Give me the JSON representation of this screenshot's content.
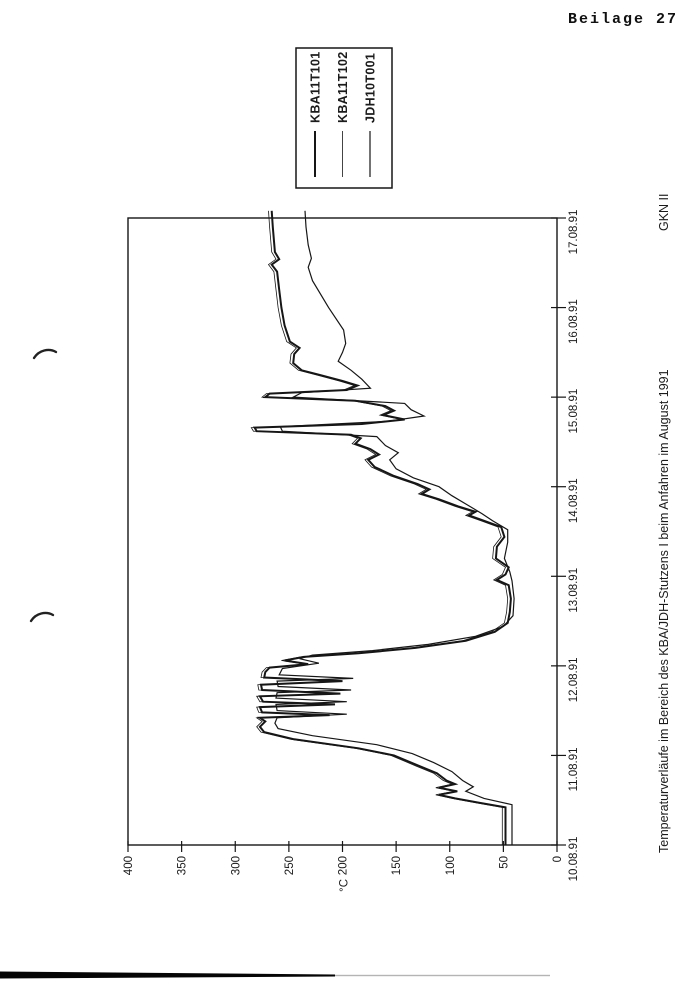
{
  "header": {
    "label": "Beilage 27"
  },
  "chart_data": {
    "type": "line",
    "orientation": "page rotated 90deg (read by turning page clockwise)",
    "title": "Temperaturverläufe im Bereich des KBA/JDH-Stutzens I beim Anfahren im August 1991",
    "footer_right": "GKN II",
    "ylabel": "°C",
    "grid": false,
    "ink_color": "#161616",
    "x_axis": {
      "min": 10,
      "max": 17,
      "ticks": [
        {
          "v": 10,
          "label": "10.08.91"
        },
        {
          "v": 11,
          "label": "11.08.91"
        },
        {
          "v": 12,
          "label": "12.08.91"
        },
        {
          "v": 13,
          "label": "13.08.91"
        },
        {
          "v": 14,
          "label": "14.08.91"
        },
        {
          "v": 15,
          "label": "15.08.91"
        },
        {
          "v": 16,
          "label": "16.08.91"
        },
        {
          "v": 17,
          "label": "17.08.91"
        }
      ]
    },
    "y_axis": {
      "min": 0,
      "max": 400,
      "ticks": [
        0,
        50,
        100,
        150,
        200,
        250,
        300,
        350,
        400
      ]
    },
    "legend": {
      "position": "outside-right",
      "box": true
    },
    "series": [
      {
        "name": "KBA11T101",
        "stroke_width": 2,
        "points": [
          [
            10.0,
            48
          ],
          [
            10.42,
            48
          ],
          [
            10.47,
            72
          ],
          [
            10.52,
            95
          ],
          [
            10.56,
            110
          ],
          [
            10.6,
            93
          ],
          [
            10.64,
            110
          ],
          [
            10.68,
            95
          ],
          [
            10.72,
            103
          ],
          [
            10.8,
            112
          ],
          [
            10.88,
            128
          ],
          [
            11.0,
            152
          ],
          [
            11.08,
            185
          ],
          [
            11.18,
            245
          ],
          [
            11.26,
            273
          ],
          [
            11.32,
            277
          ],
          [
            11.38,
            272
          ],
          [
            11.42,
            277
          ],
          [
            11.45,
            212
          ],
          [
            11.48,
            275
          ],
          [
            11.54,
            277
          ],
          [
            11.57,
            207
          ],
          [
            11.6,
            274
          ],
          [
            11.66,
            277
          ],
          [
            11.69,
            202
          ],
          [
            11.73,
            275
          ],
          [
            11.79,
            276
          ],
          [
            11.83,
            200
          ],
          [
            11.87,
            273
          ],
          [
            11.93,
            272
          ],
          [
            11.98,
            268
          ],
          [
            12.02,
            232
          ],
          [
            12.06,
            254
          ],
          [
            12.1,
            236
          ],
          [
            12.14,
            185
          ],
          [
            12.2,
            132
          ],
          [
            12.28,
            85
          ],
          [
            12.38,
            58
          ],
          [
            12.48,
            46
          ],
          [
            12.6,
            44
          ],
          [
            12.75,
            43
          ],
          [
            12.9,
            45
          ],
          [
            12.96,
            56
          ],
          [
            13.02,
            48
          ],
          [
            13.1,
            45
          ],
          [
            13.2,
            57
          ],
          [
            13.33,
            56
          ],
          [
            13.44,
            49
          ],
          [
            13.55,
            52
          ],
          [
            13.62,
            68
          ],
          [
            13.68,
            82
          ],
          [
            13.72,
            76
          ],
          [
            13.78,
            92
          ],
          [
            13.86,
            110
          ],
          [
            13.92,
            126
          ],
          [
            13.97,
            119
          ],
          [
            14.03,
            130
          ],
          [
            14.12,
            152
          ],
          [
            14.22,
            170
          ],
          [
            14.3,
            176
          ],
          [
            14.36,
            166
          ],
          [
            14.42,
            174
          ],
          [
            14.48,
            188
          ],
          [
            14.54,
            183
          ],
          [
            14.58,
            192
          ],
          [
            14.62,
            280
          ],
          [
            14.66,
            282
          ],
          [
            14.7,
            182
          ],
          [
            14.75,
            142
          ],
          [
            14.8,
            162
          ],
          [
            14.85,
            152
          ],
          [
            14.9,
            160
          ],
          [
            14.96,
            188
          ],
          [
            15.0,
            272
          ],
          [
            15.04,
            268
          ],
          [
            15.08,
            196
          ],
          [
            15.13,
            186
          ],
          [
            15.18,
            200
          ],
          [
            15.25,
            222
          ],
          [
            15.3,
            238
          ],
          [
            15.38,
            246
          ],
          [
            15.48,
            245
          ],
          [
            15.55,
            240
          ],
          [
            15.62,
            249
          ],
          [
            15.8,
            254
          ],
          [
            16.0,
            257
          ],
          [
            16.2,
            259
          ],
          [
            16.4,
            261
          ],
          [
            16.48,
            266
          ],
          [
            16.54,
            259
          ],
          [
            16.62,
            263
          ],
          [
            16.9,
            265
          ],
          [
            17.08,
            266
          ]
        ]
      },
      {
        "name": "KBA11T102",
        "stroke_width": 0.8,
        "points": [
          [
            10.0,
            51
          ],
          [
            10.42,
            51
          ],
          [
            10.47,
            75
          ],
          [
            10.52,
            98
          ],
          [
            10.56,
            113
          ],
          [
            10.6,
            96
          ],
          [
            10.64,
            113
          ],
          [
            10.68,
            98
          ],
          [
            10.72,
            106
          ],
          [
            10.8,
            115
          ],
          [
            10.88,
            131
          ],
          [
            11.0,
            155
          ],
          [
            11.08,
            188
          ],
          [
            11.18,
            248
          ],
          [
            11.26,
            276
          ],
          [
            11.32,
            280
          ],
          [
            11.38,
            275
          ],
          [
            11.42,
            280
          ],
          [
            11.45,
            215
          ],
          [
            11.48,
            278
          ],
          [
            11.54,
            280
          ],
          [
            11.57,
            210
          ],
          [
            11.6,
            277
          ],
          [
            11.66,
            280
          ],
          [
            11.69,
            205
          ],
          [
            11.73,
            278
          ],
          [
            11.79,
            279
          ],
          [
            11.83,
            203
          ],
          [
            11.87,
            276
          ],
          [
            11.93,
            275
          ],
          [
            11.98,
            271
          ],
          [
            12.02,
            235
          ],
          [
            12.06,
            257
          ],
          [
            12.1,
            239
          ],
          [
            12.14,
            188
          ],
          [
            12.2,
            135
          ],
          [
            12.28,
            88
          ],
          [
            12.38,
            61
          ],
          [
            12.48,
            49
          ],
          [
            12.6,
            47
          ],
          [
            12.75,
            46
          ],
          [
            12.9,
            48
          ],
          [
            12.96,
            59
          ],
          [
            13.02,
            51
          ],
          [
            13.1,
            48
          ],
          [
            13.2,
            60
          ],
          [
            13.33,
            59
          ],
          [
            13.44,
            52
          ],
          [
            13.55,
            55
          ],
          [
            13.62,
            71
          ],
          [
            13.68,
            85
          ],
          [
            13.72,
            79
          ],
          [
            13.78,
            95
          ],
          [
            13.86,
            113
          ],
          [
            13.92,
            129
          ],
          [
            13.97,
            122
          ],
          [
            14.03,
            133
          ],
          [
            14.12,
            155
          ],
          [
            14.22,
            173
          ],
          [
            14.3,
            179
          ],
          [
            14.36,
            169
          ],
          [
            14.42,
            177
          ],
          [
            14.48,
            191
          ],
          [
            14.54,
            186
          ],
          [
            14.58,
            195
          ],
          [
            14.62,
            283
          ],
          [
            14.66,
            285
          ],
          [
            14.7,
            185
          ],
          [
            14.75,
            145
          ],
          [
            14.8,
            165
          ],
          [
            14.85,
            155
          ],
          [
            14.9,
            163
          ],
          [
            14.96,
            191
          ],
          [
            15.0,
            275
          ],
          [
            15.04,
            271
          ],
          [
            15.08,
            199
          ],
          [
            15.13,
            189
          ],
          [
            15.18,
            203
          ],
          [
            15.25,
            225
          ],
          [
            15.3,
            241
          ],
          [
            15.38,
            249
          ],
          [
            15.48,
            248
          ],
          [
            15.55,
            243
          ],
          [
            15.62,
            252
          ],
          [
            15.8,
            257
          ],
          [
            16.0,
            260
          ],
          [
            16.2,
            262
          ],
          [
            16.4,
            264
          ],
          [
            16.48,
            269
          ],
          [
            16.54,
            262
          ],
          [
            16.62,
            266
          ],
          [
            16.9,
            268
          ],
          [
            17.08,
            269
          ]
        ]
      },
      {
        "name": "JDH10T001",
        "stroke_width": 1.2,
        "points": [
          [
            10.0,
            42
          ],
          [
            10.45,
            42
          ],
          [
            10.52,
            68
          ],
          [
            10.6,
            85
          ],
          [
            10.65,
            78
          ],
          [
            10.72,
            88
          ],
          [
            10.82,
            98
          ],
          [
            10.92,
            115
          ],
          [
            11.02,
            135
          ],
          [
            11.12,
            168
          ],
          [
            11.22,
            228
          ],
          [
            11.3,
            260
          ],
          [
            11.36,
            263
          ],
          [
            11.42,
            261
          ],
          [
            11.46,
            196
          ],
          [
            11.5,
            261
          ],
          [
            11.57,
            262
          ],
          [
            11.6,
            196
          ],
          [
            11.64,
            262
          ],
          [
            11.7,
            261
          ],
          [
            11.73,
            192
          ],
          [
            11.77,
            260
          ],
          [
            11.83,
            261
          ],
          [
            11.86,
            190
          ],
          [
            11.9,
            259
          ],
          [
            11.97,
            256
          ],
          [
            12.03,
            222
          ],
          [
            12.08,
            240
          ],
          [
            12.12,
            228
          ],
          [
            12.17,
            172
          ],
          [
            12.24,
            120
          ],
          [
            12.33,
            76
          ],
          [
            12.44,
            50
          ],
          [
            12.56,
            41
          ],
          [
            12.75,
            40
          ],
          [
            12.95,
            42
          ],
          [
            13.05,
            44
          ],
          [
            13.2,
            49
          ],
          [
            13.38,
            46
          ],
          [
            13.52,
            46
          ],
          [
            13.62,
            60
          ],
          [
            13.7,
            70
          ],
          [
            13.8,
            84
          ],
          [
            13.9,
            98
          ],
          [
            14.0,
            110
          ],
          [
            14.1,
            134
          ],
          [
            14.2,
            150
          ],
          [
            14.3,
            156
          ],
          [
            14.38,
            148
          ],
          [
            14.46,
            160
          ],
          [
            14.56,
            168
          ],
          [
            14.62,
            256
          ],
          [
            14.67,
            258
          ],
          [
            14.73,
            158
          ],
          [
            14.79,
            124
          ],
          [
            14.86,
            136
          ],
          [
            14.93,
            142
          ],
          [
            15.0,
            246
          ],
          [
            15.05,
            238
          ],
          [
            15.1,
            174
          ],
          [
            15.2,
            182
          ],
          [
            15.3,
            192
          ],
          [
            15.4,
            204
          ],
          [
            15.5,
            200
          ],
          [
            15.6,
            197
          ],
          [
            15.75,
            199
          ],
          [
            16.0,
            213
          ],
          [
            16.3,
            228
          ],
          [
            16.45,
            232
          ],
          [
            16.55,
            229
          ],
          [
            16.7,
            232
          ],
          [
            16.9,
            234
          ],
          [
            17.08,
            235
          ]
        ]
      }
    ]
  }
}
